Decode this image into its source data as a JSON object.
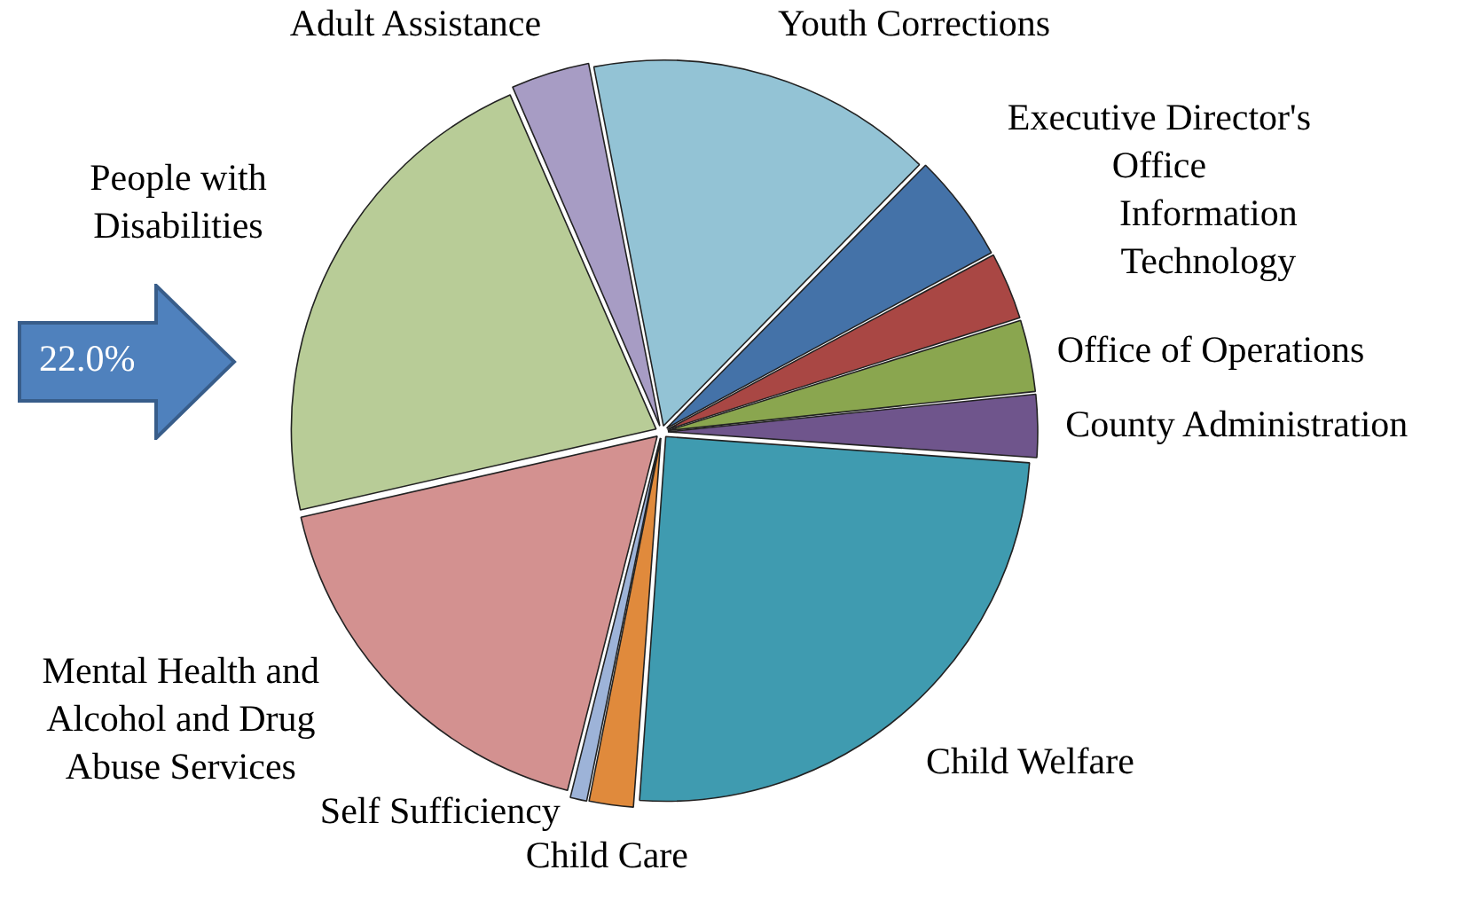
{
  "chart_data": {
    "type": "pie",
    "categories": [
      "Youth Corrections",
      "Executive Director's Office",
      "Information Technology",
      "Office of Operations",
      "County Administration",
      "Child Welfare",
      "Child Care",
      "Self Sufficiency",
      "Mental Health and Alcohol and Drug Abuse Services",
      "People with Disabilities",
      "Adult Assistance"
    ],
    "values": [
      15.4,
      4.8,
      3.0,
      3.2,
      2.8,
      25.0,
      2.0,
      0.8,
      17.5,
      22.0,
      3.5
    ],
    "colors": [
      "#93c3d5",
      "#4472a8",
      "#a94744",
      "#8aa64f",
      "#6f558c",
      "#3f9bb0",
      "#e08a3c",
      "#9db3d8",
      "#d39190",
      "#b8cc97",
      "#a79cc4"
    ],
    "value_labels": [
      null,
      null,
      null,
      null,
      null,
      null,
      null,
      null,
      null,
      "22.0%",
      null
    ],
    "legend": false
  }
}
